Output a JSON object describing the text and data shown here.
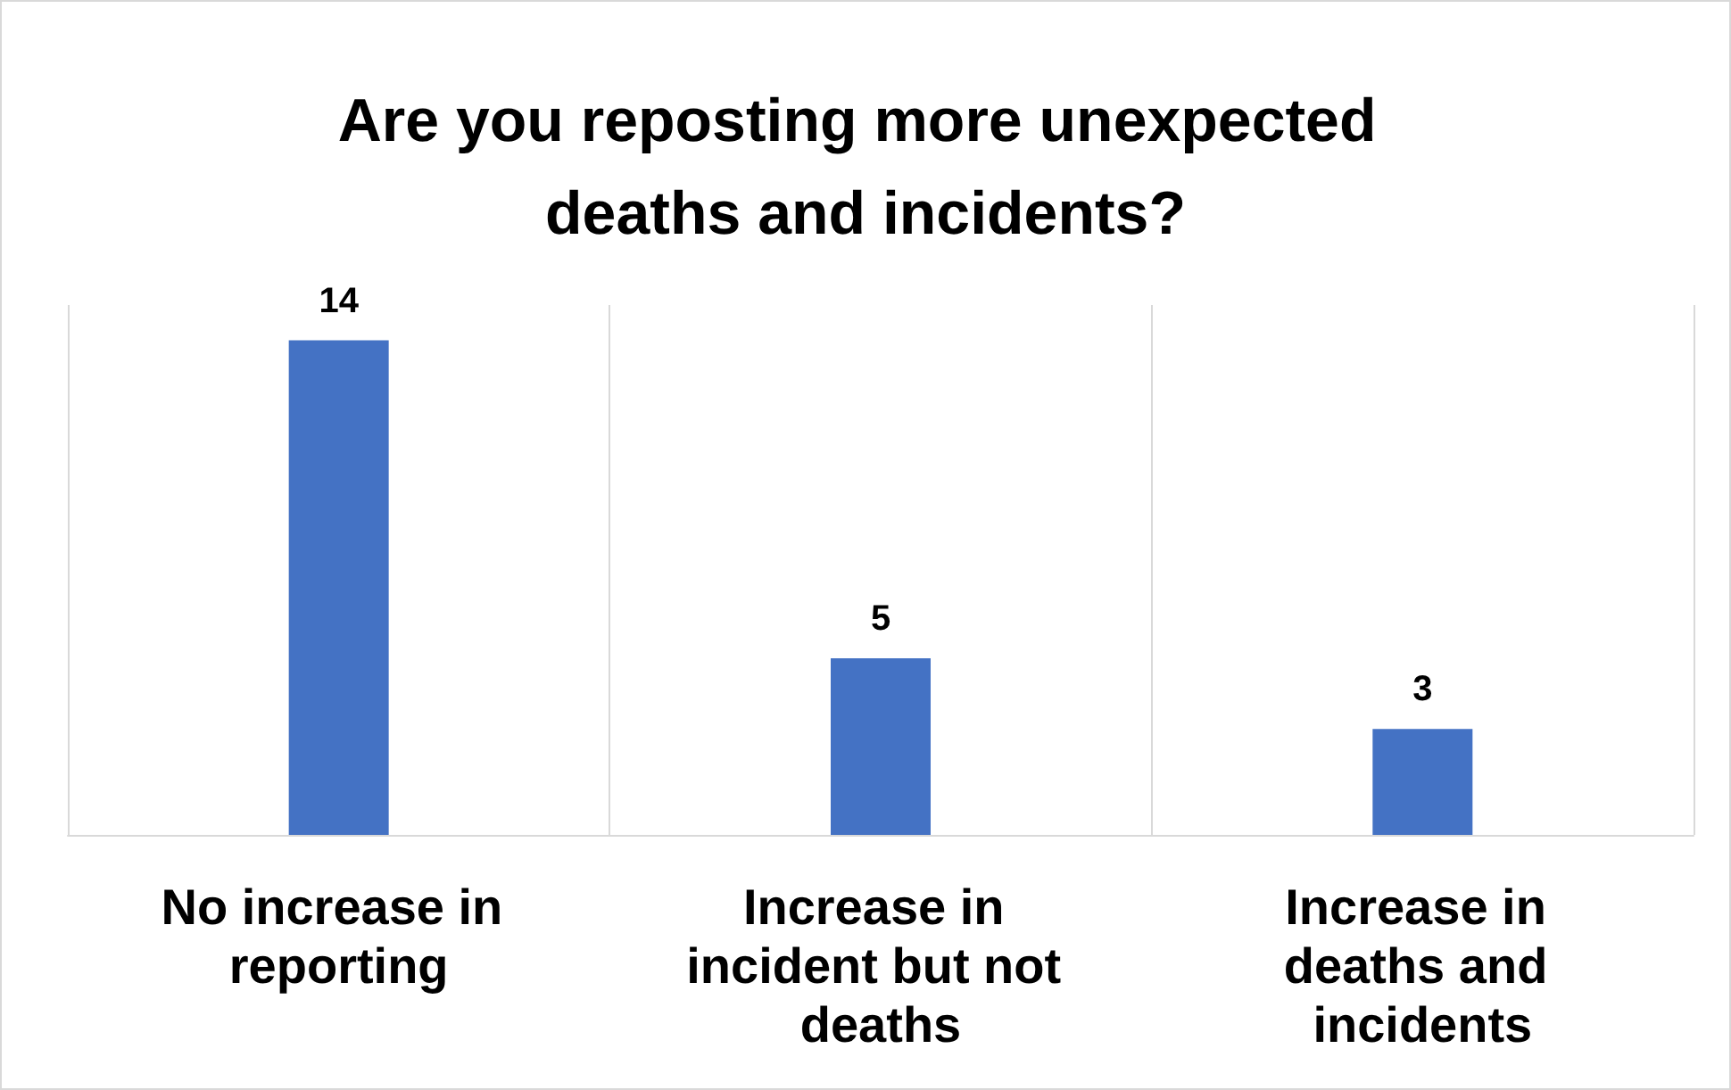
{
  "chart_data": {
    "type": "bar",
    "title": "Are you reposting more unexpected deaths and incidents?",
    "categories": [
      "No increase in reporting",
      "Increase in incident but not deaths",
      "Increase in deaths and incidents"
    ],
    "values": [
      14,
      5,
      3
    ],
    "color": "#4472c4",
    "data_labels": true,
    "grid": "x"
  }
}
